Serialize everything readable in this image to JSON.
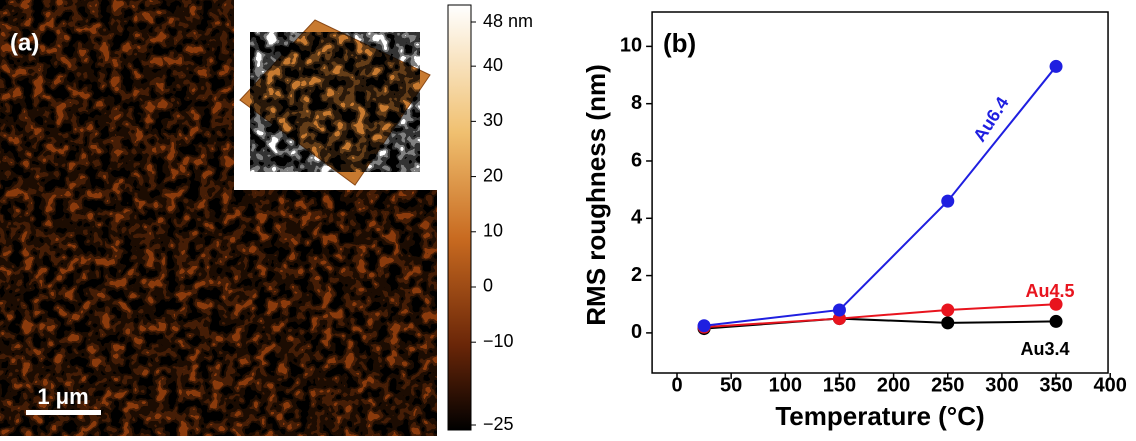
{
  "panel_a": {
    "label": "(a)",
    "scale_bar": "1 μm",
    "colorbar": {
      "lim": [
        -25,
        48
      ],
      "ticks": [
        {
          "value": 48,
          "label": "48 nm"
        },
        40,
        30,
        20,
        10,
        0,
        {
          "value": -10,
          "label": "−10"
        },
        {
          "value": -25,
          "label": "−25"
        }
      ]
    }
  },
  "chart_data": {
    "type": "line",
    "panel_label": "(b)",
    "x_label": "Temperature (°C)",
    "y_label": "RMS roughness (nm)",
    "x": [
      25,
      150,
      250,
      350
    ],
    "series": [
      {
        "name": "Au3.4",
        "color": "#000000",
        "values": [
          0.15,
          0.5,
          0.35,
          0.4
        ]
      },
      {
        "name": "Au4.5",
        "color": "#e8141e",
        "values": [
          0.2,
          0.5,
          0.8,
          1.0
        ]
      },
      {
        "name": "Au6.4",
        "color": "#1f1fe0",
        "values": [
          0.25,
          0.8,
          4.6,
          9.3
        ]
      }
    ],
    "xlim": [
      -23,
      398
    ],
    "ylim": [
      -1.4,
      11.2
    ],
    "xticks": [
      0,
      50,
      100,
      150,
      200,
      250,
      300,
      350,
      400
    ],
    "yticks": [
      0,
      2,
      4,
      6,
      8,
      10
    ]
  }
}
